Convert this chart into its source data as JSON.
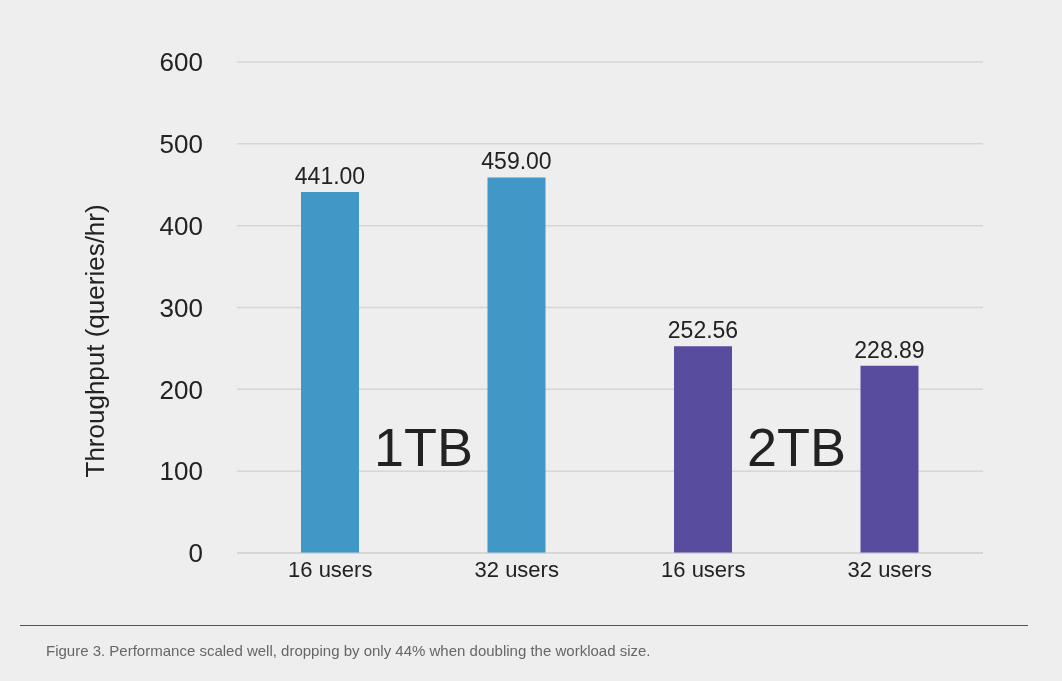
{
  "chart_data": {
    "type": "bar",
    "ylabel": "Throughput (queries/hr)",
    "categories": [
      "16 users",
      "32 users",
      "16 users",
      "32 users"
    ],
    "values": [
      441,
      459,
      252.56,
      228.89
    ],
    "colors": [
      "#4197c5",
      "#4197c5",
      "#574c9e",
      "#574c9e"
    ],
    "value_labels": [
      "441.00",
      "459.00",
      "252.56",
      "228.89"
    ],
    "ylim": [
      0,
      600
    ],
    "yticks": [
      0,
      100,
      200,
      300,
      400,
      500,
      600
    ],
    "grid": "y",
    "annotations": [
      "1TB",
      "2TB",
      "Figure 3. Performance scaled well, dropping by only 44% when doubling the workload size."
    ]
  }
}
